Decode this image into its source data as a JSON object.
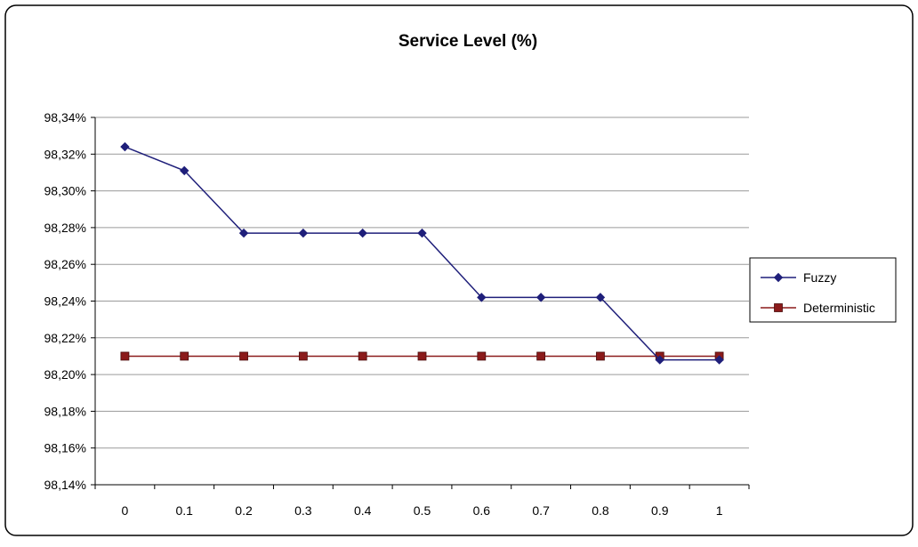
{
  "chart_data": {
    "type": "line",
    "title": "Service Level (%)",
    "xlabel": "",
    "ylabel": "",
    "categories": [
      "0",
      "0.1",
      "0.2",
      "0.3",
      "0.4",
      "0.5",
      "0.6",
      "0.7",
      "0.8",
      "0.9",
      "1"
    ],
    "ylim": [
      98.14,
      98.34
    ],
    "yticks": [
      98.14,
      98.16,
      98.18,
      98.2,
      98.22,
      98.24,
      98.26,
      98.28,
      98.3,
      98.32,
      98.34
    ],
    "ytick_labels": [
      "98,14%",
      "98,16%",
      "98,18%",
      "98,20%",
      "98,22%",
      "98,24%",
      "98,26%",
      "98,28%",
      "98,30%",
      "98,32%",
      "98,34%"
    ],
    "grid": true,
    "legend_position": "right",
    "series": [
      {
        "name": "Fuzzy",
        "color": "#1f1f7a",
        "marker": "diamond",
        "values": [
          98.324,
          98.311,
          98.277,
          98.277,
          98.277,
          98.277,
          98.242,
          98.242,
          98.242,
          98.208,
          98.208
        ]
      },
      {
        "name": "Deterministic",
        "color": "#8b1a1a",
        "marker": "square",
        "values": [
          98.21,
          98.21,
          98.21,
          98.21,
          98.21,
          98.21,
          98.21,
          98.21,
          98.21,
          98.21,
          98.21
        ]
      }
    ]
  }
}
